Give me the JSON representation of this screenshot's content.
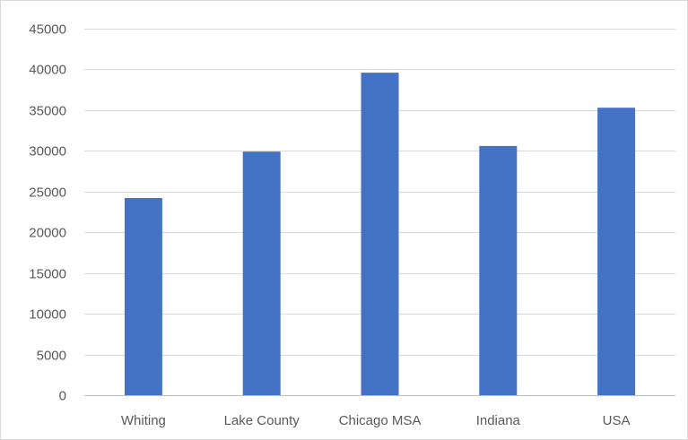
{
  "chart_data": {
    "type": "bar",
    "title": "",
    "xlabel": "",
    "ylabel": "",
    "categories": [
      "Whiting",
      "Lake County",
      "Chicago MSA",
      "Indiana",
      "USA"
    ],
    "values": [
      24200,
      29900,
      39600,
      30600,
      35300
    ],
    "ylim": [
      0,
      45000
    ],
    "yticks": [
      0,
      5000,
      10000,
      15000,
      20000,
      25000,
      30000,
      35000,
      40000,
      45000
    ],
    "grid": true,
    "legend": "none",
    "colors": {
      "bar": "#4472C4",
      "grid": "#d9d9d9",
      "axis": "#bfbfbf",
      "text": "#595959"
    }
  }
}
